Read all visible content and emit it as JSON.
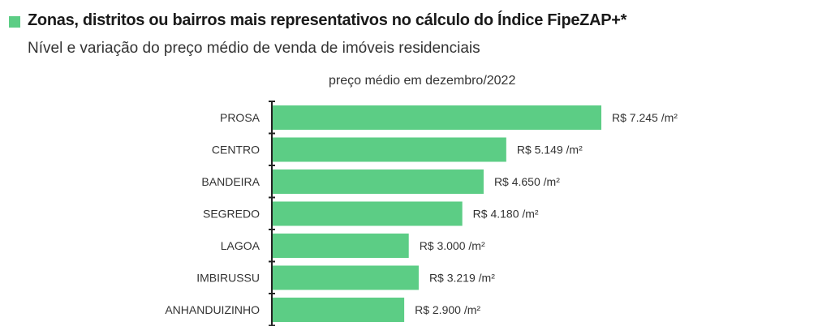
{
  "header": {
    "title": "Zonas, distritos ou bairros mais representativos no cálculo do Índice FipeZAP+*",
    "subtitle": "Nível e variação do preço médio de venda de imóveis residenciais"
  },
  "colors": {
    "bar": "#5ccd85",
    "axis": "#222222"
  },
  "chart_data": {
    "type": "bar",
    "orientation": "horizontal",
    "title": "preço médio em dezembro/2022",
    "categories": [
      "PROSA",
      "CENTRO",
      "BANDEIRA",
      "SEGREDO",
      "LAGOA",
      "IMBIRUSSU",
      "ANHANDUIZINHO"
    ],
    "values": [
      7245,
      5149,
      4650,
      4180,
      3000,
      3219,
      2900
    ],
    "labels": [
      "R$ 7.245 /m²",
      "R$ 5.149 /m²",
      "R$ 4.650 /m²",
      "R$ 4.180 /m²",
      "R$ 3.000 /m²",
      "R$ 3.219 /m²",
      "R$ 2.900 /m²"
    ],
    "xlabel": "",
    "ylabel": "",
    "xlim": [
      0,
      7245
    ],
    "grid": false
  }
}
